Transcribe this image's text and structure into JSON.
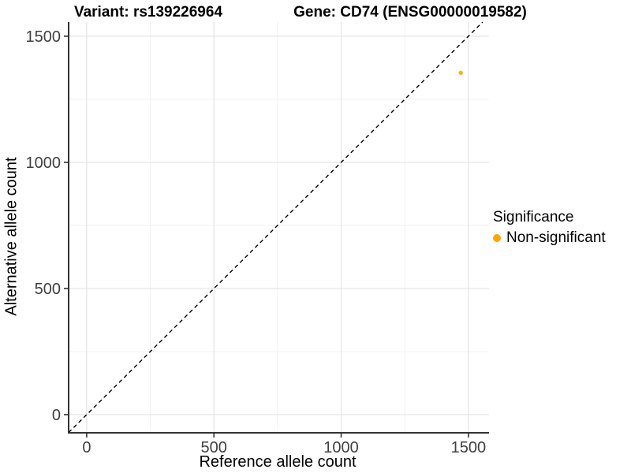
{
  "figure": {
    "title_left": "Variant: rs139226964",
    "title_right": "Gene: CD74 (ENSG00000019582)"
  },
  "chart_data": {
    "type": "scatter",
    "xlabel": "Reference allele count",
    "ylabel": "Alternative allele count",
    "x_ticks": [
      0,
      500,
      1000,
      1500
    ],
    "y_ticks": [
      0,
      500,
      1000,
      1500
    ],
    "x_minor_ticks": [
      250,
      750,
      1250
    ],
    "y_minor_ticks": [
      250,
      750,
      1250
    ],
    "xlim": [
      -71,
      1581
    ],
    "ylim": [
      -72,
      1556
    ],
    "grid": true,
    "identity_line": {
      "type": "y = x",
      "style": "dashed",
      "color": "#000000"
    },
    "points": [
      {
        "x": 1470,
        "y": 1355,
        "series": "Non-significant",
        "color": "#FFA500",
        "radius": 2.7
      }
    ],
    "legend": {
      "position": "right",
      "title": "Significance",
      "items": [
        {
          "label": "Non-significant",
          "color": "#FFA500",
          "marker": "dot"
        }
      ]
    },
    "colors": {
      "axis_line": "#333333",
      "tick_text": "#404040",
      "grid_major": "#E4E4E4",
      "grid_minor": "#F1F1F1",
      "background": "#FFFFFF"
    }
  }
}
